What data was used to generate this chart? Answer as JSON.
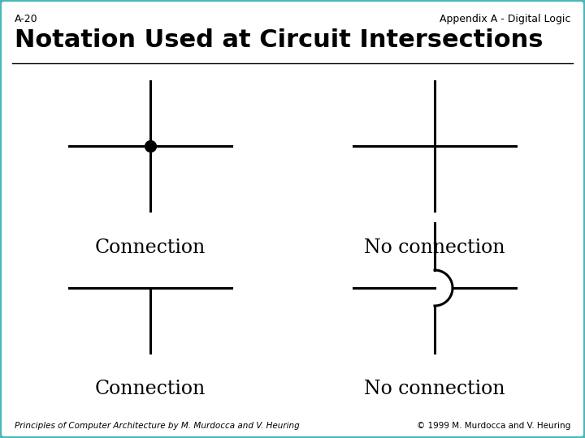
{
  "title": "Notation Used at Circuit Intersections",
  "header_left": "A-20",
  "header_right": "Appendix A - Digital Logic",
  "footer_left": "Principles of Computer Architecture by M. Murdocca and V. Heuring",
  "footer_right": "© 1999 M. Murdocca and V. Heuring",
  "label_tl": "Connection",
  "label_tr": "No connection",
  "label_bl": "Connection",
  "label_br": "No connection",
  "background_color": "#ffffff",
  "border_color": "#4ab8b8",
  "line_color": "#000000",
  "title_fontsize": 22,
  "header_fontsize": 9,
  "label_fontsize": 17,
  "footer_fontsize": 7.5
}
